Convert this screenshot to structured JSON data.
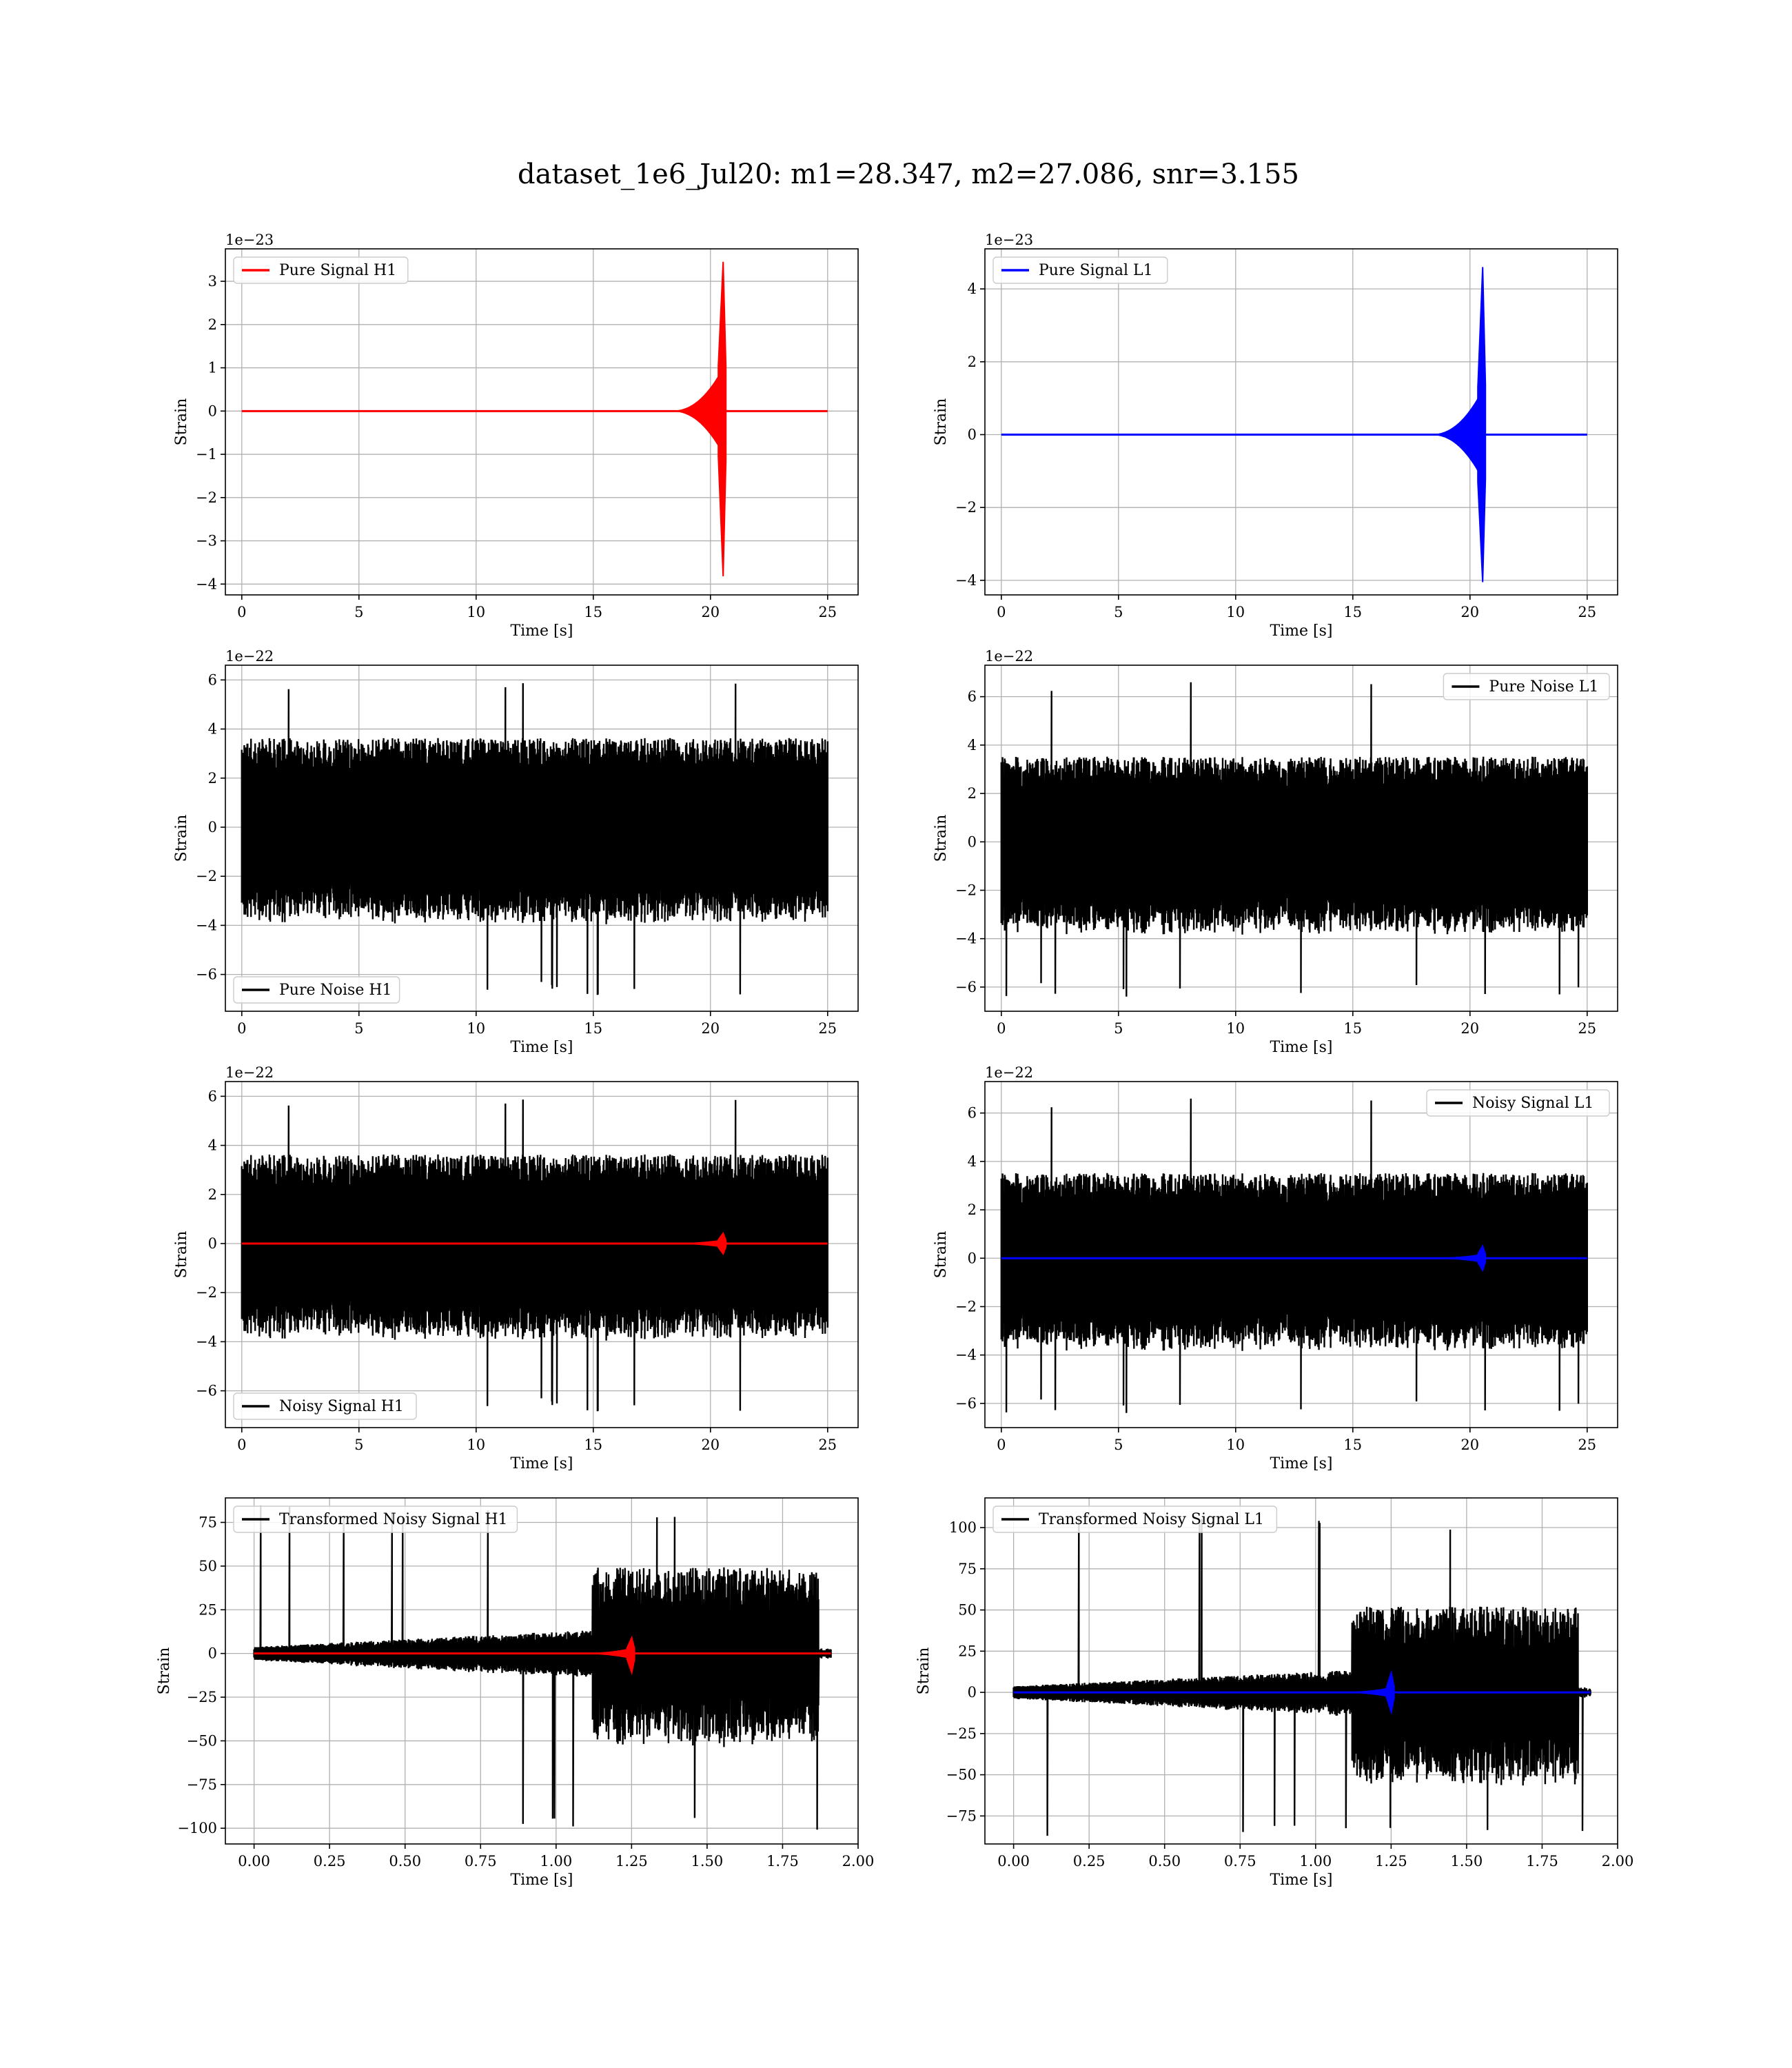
{
  "figure": {
    "title": "dataset_1e6_Jul20: m1=28.347, m2=27.086, snr=3.155"
  },
  "colors": {
    "h1_signal": "#ff0000",
    "l1_signal": "#0000ff",
    "noise": "#000000",
    "grid": "#b0b0b0",
    "legend_border": "#cccccc"
  },
  "chart_data": [
    {
      "type": "line",
      "id": "pure-signal-h1",
      "xlabel": "Time [s]",
      "ylabel": "Strain",
      "offset_text": "1e−23",
      "xlim": [
        -0.7,
        26.3
      ],
      "ylim": [
        -4.25,
        3.75
      ],
      "xticks": [
        0,
        5,
        10,
        15,
        20,
        25
      ],
      "xtick_labels": [
        "0",
        "5",
        "10",
        "15",
        "20",
        "25"
      ],
      "yticks": [
        -4,
        -3,
        -2,
        -1,
        0,
        1,
        2,
        3
      ],
      "ytick_labels": [
        "−4",
        "−3",
        "−2",
        "−1",
        "0",
        "1",
        "2",
        "3"
      ],
      "grid": true,
      "legend_loc": "upper left",
      "series": [
        {
          "name": "Pure Signal H1",
          "color": "#ff0000",
          "kind": "chirp",
          "t_start": 0,
          "t_end": 25,
          "t_merge": 20.6,
          "pos_peak": 3.45,
          "neg_peak": -3.82,
          "inspiral_amp": 1.05
        }
      ]
    },
    {
      "type": "line",
      "id": "pure-signal-l1",
      "xlabel": "Time [s]",
      "ylabel": "Strain",
      "offset_text": "1e−23",
      "xlim": [
        -0.7,
        26.3
      ],
      "ylim": [
        -4.4,
        5.1
      ],
      "xticks": [
        0,
        5,
        10,
        15,
        20,
        25
      ],
      "xtick_labels": [
        "0",
        "5",
        "10",
        "15",
        "20",
        "25"
      ],
      "yticks": [
        -4,
        -2,
        0,
        2,
        4
      ],
      "ytick_labels": [
        "−4",
        "−2",
        "0",
        "2",
        "4"
      ],
      "grid": true,
      "legend_loc": "upper left",
      "series": [
        {
          "name": "Pure Signal L1",
          "color": "#0000ff",
          "kind": "chirp",
          "t_start": 0,
          "t_end": 25,
          "t_merge": 20.6,
          "pos_peak": 4.6,
          "neg_peak": -4.05,
          "inspiral_amp": 1.3
        }
      ]
    },
    {
      "type": "line",
      "id": "pure-noise-h1",
      "xlabel": "Time [s]",
      "ylabel": "Strain",
      "offset_text": "1e−22",
      "xlim": [
        -0.7,
        26.3
      ],
      "ylim": [
        -7.5,
        6.6
      ],
      "xticks": [
        0,
        5,
        10,
        15,
        20,
        25
      ],
      "xtick_labels": [
        "0",
        "5",
        "10",
        "15",
        "20",
        "25"
      ],
      "yticks": [
        -6,
        -4,
        -2,
        0,
        2,
        4,
        6
      ],
      "ytick_labels": [
        "−6",
        "−4",
        "−2",
        "0",
        "2",
        "4",
        "6"
      ],
      "grid": true,
      "legend_loc": "lower left",
      "series": [
        {
          "name": "Pure Noise H1",
          "color": "#000000",
          "kind": "noise",
          "t_start": 0,
          "t_end": 25,
          "band": 3.3,
          "max": 6.0,
          "min": -6.9,
          "seed": 11
        }
      ]
    },
    {
      "type": "line",
      "id": "pure-noise-l1",
      "xlabel": "Time [s]",
      "ylabel": "Strain",
      "offset_text": "1e−22",
      "xlim": [
        -0.7,
        26.3
      ],
      "ylim": [
        -7.0,
        7.3
      ],
      "xticks": [
        0,
        5,
        10,
        15,
        20,
        25
      ],
      "xtick_labels": [
        "0",
        "5",
        "10",
        "15",
        "20",
        "25"
      ],
      "yticks": [
        -6,
        -4,
        -2,
        0,
        2,
        4,
        6
      ],
      "ytick_labels": [
        "−6",
        "−4",
        "−2",
        "0",
        "2",
        "4",
        "6"
      ],
      "grid": true,
      "legend_loc": "upper right",
      "series": [
        {
          "name": "Pure Noise L1",
          "color": "#000000",
          "kind": "noise",
          "t_start": 0,
          "t_end": 25,
          "band": 3.2,
          "max": 6.7,
          "min": -6.4,
          "seed": 23
        }
      ]
    },
    {
      "type": "line",
      "id": "noisy-signal-h1",
      "xlabel": "Time [s]",
      "ylabel": "Strain",
      "offset_text": "1e−22",
      "xlim": [
        -0.7,
        26.3
      ],
      "ylim": [
        -7.5,
        6.6
      ],
      "xticks": [
        0,
        5,
        10,
        15,
        20,
        25
      ],
      "xtick_labels": [
        "0",
        "5",
        "10",
        "15",
        "20",
        "25"
      ],
      "yticks": [
        -6,
        -4,
        -2,
        0,
        2,
        4,
        6
      ],
      "ytick_labels": [
        "−6",
        "−4",
        "−2",
        "0",
        "2",
        "4",
        "6"
      ],
      "grid": true,
      "legend_loc": "lower left",
      "series": [
        {
          "name": "Noisy Signal H1",
          "color": "#000000",
          "kind": "noise",
          "t_start": 0,
          "t_end": 25,
          "band": 3.3,
          "max": 6.0,
          "min": -6.9,
          "seed": 11
        },
        {
          "name": "",
          "color": "#ff0000",
          "kind": "chirp",
          "t_start": 0,
          "t_end": 25,
          "t_merge": 20.6,
          "pos_peak": 0.42,
          "neg_peak": -0.42,
          "inspiral_amp": 0.15
        }
      ]
    },
    {
      "type": "line",
      "id": "noisy-signal-l1",
      "xlabel": "Time [s]",
      "ylabel": "Strain",
      "offset_text": "1e−22",
      "xlim": [
        -0.7,
        26.3
      ],
      "ylim": [
        -7.0,
        7.3
      ],
      "xticks": [
        0,
        5,
        10,
        15,
        20,
        25
      ],
      "xtick_labels": [
        "0",
        "5",
        "10",
        "15",
        "20",
        "25"
      ],
      "yticks": [
        -6,
        -4,
        -2,
        0,
        2,
        4,
        6
      ],
      "ytick_labels": [
        "−6",
        "−4",
        "−2",
        "0",
        "2",
        "4",
        "6"
      ],
      "grid": true,
      "legend_loc": "upper right",
      "series": [
        {
          "name": "Noisy Signal L1",
          "color": "#000000",
          "kind": "noise",
          "t_start": 0,
          "t_end": 25,
          "band": 3.2,
          "max": 6.7,
          "min": -6.4,
          "seed": 23
        },
        {
          "name": "",
          "color": "#0000ff",
          "kind": "chirp",
          "t_start": 0,
          "t_end": 25,
          "t_merge": 20.6,
          "pos_peak": 0.5,
          "neg_peak": -0.5,
          "inspiral_amp": 0.17
        }
      ]
    },
    {
      "type": "line",
      "id": "transformed-noisy-signal-h1",
      "xlabel": "Time [s]",
      "ylabel": "Strain",
      "offset_text": "",
      "xlim": [
        -0.095,
        2.0
      ],
      "ylim": [
        -109,
        89
      ],
      "xticks": [
        0,
        0.25,
        0.5,
        0.75,
        1.0,
        1.25,
        1.5,
        1.75,
        2.0
      ],
      "xtick_labels": [
        "0.00",
        "0.25",
        "0.50",
        "0.75",
        "1.00",
        "1.25",
        "1.50",
        "1.75",
        "2.00"
      ],
      "yticks": [
        -100,
        -75,
        -50,
        -25,
        0,
        25,
        50,
        75
      ],
      "ytick_labels": [
        "−100",
        "−75",
        "−50",
        "−25",
        "0",
        "25",
        "50",
        "75"
      ],
      "grid": true,
      "legend_loc": "upper left",
      "series": [
        {
          "name": "Transformed Noisy Signal H1",
          "color": "#000000",
          "kind": "whitened",
          "t_start": 0,
          "t_end": 1.91,
          "t_jump": 1.12,
          "t_stop": 1.87,
          "low_amp": 9,
          "high_amp": 38,
          "max": 85,
          "min": -104,
          "seed": 7
        },
        {
          "name": "",
          "color": "#ff0000",
          "kind": "chirp",
          "t_start": 0,
          "t_end": 1.91,
          "t_merge": 1.255,
          "pos_peak": 9,
          "neg_peak": -11,
          "inspiral_amp": 3
        }
      ]
    },
    {
      "type": "line",
      "id": "transformed-noisy-signal-l1",
      "xlabel": "Time [s]",
      "ylabel": "Strain",
      "offset_text": "",
      "xlim": [
        -0.095,
        2.0
      ],
      "ylim": [
        -92,
        118
      ],
      "xticks": [
        0,
        0.25,
        0.5,
        0.75,
        1.0,
        1.25,
        1.5,
        1.75,
        2.0
      ],
      "xtick_labels": [
        "0.00",
        "0.25",
        "0.50",
        "0.75",
        "1.00",
        "1.25",
        "1.50",
        "1.75",
        "2.00"
      ],
      "yticks": [
        -75,
        -50,
        -25,
        0,
        25,
        50,
        75,
        100
      ],
      "ytick_labels": [
        "−75",
        "−50",
        "−25",
        "0",
        "25",
        "50",
        "75",
        "100"
      ],
      "grid": true,
      "legend_loc": "upper left",
      "series": [
        {
          "name": "Transformed Noisy Signal L1",
          "color": "#000000",
          "kind": "whitened",
          "t_start": 0,
          "t_end": 1.91,
          "t_jump": 1.12,
          "t_stop": 1.87,
          "low_amp": 9,
          "high_amp": 40,
          "max": 107,
          "min": -89,
          "seed": 19
        },
        {
          "name": "",
          "color": "#0000ff",
          "kind": "chirp",
          "t_start": 0,
          "t_end": 1.91,
          "t_merge": 1.255,
          "pos_peak": 12,
          "neg_peak": -12,
          "inspiral_amp": 3
        }
      ]
    }
  ]
}
